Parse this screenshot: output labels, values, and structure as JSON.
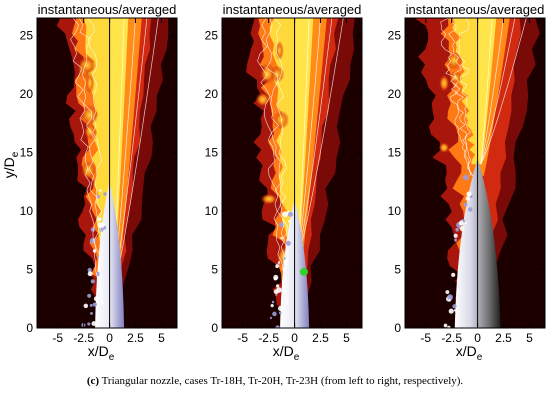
{
  "panels": [
    {
      "id": "tr-18h",
      "title": "instantaneous/averaged",
      "show_ylabel": true,
      "green_marker": false
    },
    {
      "id": "tr-20h",
      "title": "instantaneous/averaged",
      "show_ylabel": false,
      "green_marker": true
    },
    {
      "id": "tr-23h",
      "title": "instantaneous/averaged",
      "show_ylabel": false,
      "green_marker": false
    }
  ],
  "axes": {
    "xlabel": "x/D",
    "xlabel_sub": "e",
    "ylabel": "y/D",
    "ylabel_sub": "e",
    "x_ticks": [
      "-5",
      "-2.5",
      "0",
      "2.5",
      "5"
    ],
    "y_ticks": [
      "0",
      "5",
      "10",
      "15",
      "20",
      "25"
    ],
    "xlim": [
      -7,
      6.5
    ],
    "ylim": [
      0,
      26.5
    ]
  },
  "marker": {
    "x": 0.9,
    "y": 4.8,
    "color": "#2fd12f"
  },
  "caption": {
    "label": "(c)",
    "text": " Triangular nozzle, cases Tr-18H, Tr-20H, Tr-23H (from left to right, respectively)."
  }
}
